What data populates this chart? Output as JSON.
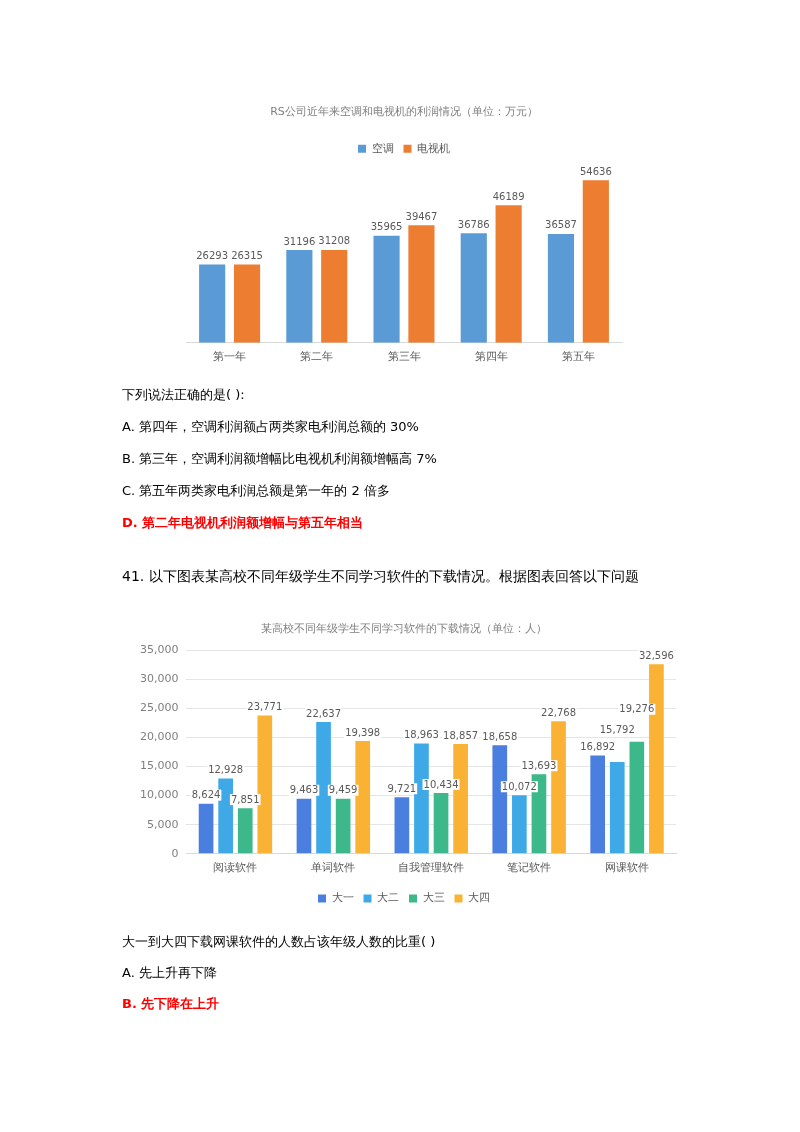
{
  "chart_data": [
    {
      "type": "bar",
      "title": "RS公司近年来空调和电视机的利润情况（单位：万元）",
      "categories": [
        "第一年",
        "第二年",
        "第三年",
        "第四年",
        "第五年"
      ],
      "series": [
        {
          "name": "空调",
          "color": "#5b9bd5",
          "values": [
            26293,
            31196,
            35965,
            36786,
            36587
          ]
        },
        {
          "name": "电视机",
          "color": "#ed7d31",
          "values": [
            26315,
            31208,
            39467,
            46189,
            54636
          ]
        }
      ],
      "data_labels": true,
      "legend": "top",
      "grid": false,
      "tick_labels": "x",
      "annotations": [
        "下列说法正确的是(    ):",
        "A.   第四年，空调利润额占两类家电利润总额的 30%",
        "B.   第三年，空调利润额增幅比电视机利润额增幅高 7%",
        "C.   第五年两类家电利润总额是第一年的 2 倍多",
        "D.   第二年电视机利润额增幅与第五年相当",
        "41. 以下图表某高校不同年级学生不同学习软件的下载情况。根据图表回答以下问题"
      ]
    },
    {
      "type": "bar",
      "title": "某高校不同年级学生不同学习软件的下载情况（单位：人）",
      "categories": [
        "阅读软件",
        "单词软件",
        "自我管理软件",
        "笔记软件",
        "网课软件"
      ],
      "series": [
        {
          "name": "大一",
          "color": "#4a7fe0",
          "values": [
            8624,
            9463,
            9721,
            18658,
            16892
          ],
          "value_labels": [
            "8,624",
            "9,463",
            "9,721",
            "18,658",
            "16,892"
          ]
        },
        {
          "name": "大二",
          "color": "#3fa9e8",
          "values": [
            12928,
            22637,
            18963,
            10072,
            15792
          ],
          "value_labels": [
            "12,928",
            "22,637",
            "18,963",
            "10,072",
            "15,792"
          ]
        },
        {
          "name": "大三",
          "color": "#3db88a",
          "values": [
            7851,
            9459,
            10434,
            13693,
            19276
          ],
          "value_labels": [
            "7,851",
            "9,459",
            "10,434",
            "13,693",
            "19,276"
          ]
        },
        {
          "name": "大四",
          "color": "#f9b233",
          "values": [
            23771,
            19398,
            18857,
            22768,
            32596
          ],
          "value_labels": [
            "23,771",
            "19,398",
            "18,857",
            "22,768",
            "32,596"
          ]
        }
      ],
      "ylim": [
        0,
        35000
      ],
      "yticks": [
        {
          "value": 0,
          "label": "0"
        },
        {
          "value": 5000,
          "label": "5,000"
        },
        {
          "value": 10000,
          "label": "10,000"
        },
        {
          "value": 15000,
          "label": "15,000"
        },
        {
          "value": 20000,
          "label": "20,000"
        },
        {
          "value": 25000,
          "label": "25,000"
        },
        {
          "value": 30000,
          "label": "30,000"
        },
        {
          "value": 35000,
          "label": "35,000"
        }
      ],
      "grid": "y",
      "legend": "bottom",
      "annotations": [
        "大一到大四下载网课软件的人数占该年级人数的比重(     )",
        "A.   先上升再下降",
        "B.   先下降在上升"
      ]
    }
  ]
}
